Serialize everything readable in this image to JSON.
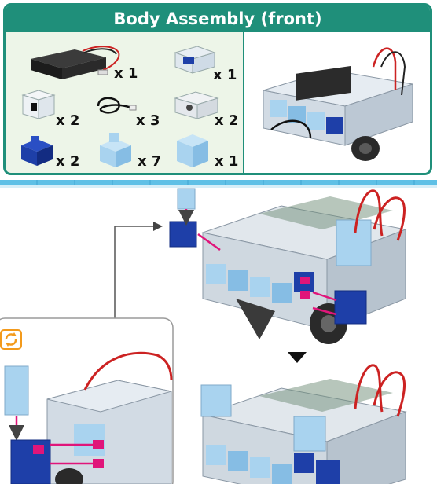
{
  "header": {
    "title": "Body Assembly (front)"
  },
  "parts": [
    {
      "name": "battery-box",
      "qty": "x 1"
    },
    {
      "name": "servo-motor",
      "qty": "x 1"
    },
    {
      "name": "light-sensor-block",
      "qty": "x 2"
    },
    {
      "name": "connecting-cable",
      "qty": "x 3"
    },
    {
      "name": "motor-block",
      "qty": "x 2"
    },
    {
      "name": "dark-blue-block",
      "qty": "x 2"
    },
    {
      "name": "light-blue-half-block",
      "qty": "x 7"
    },
    {
      "name": "light-blue-block",
      "qty": "x 1"
    }
  ],
  "colors": {
    "accent": "#1f8f7a",
    "panel_background": "#edf5e8",
    "connector_pink": "#e0157a",
    "block_dark_blue": "#1e3fa8",
    "block_light_blue": "#a9d3ef",
    "rotate_icon": "#f39a1c"
  }
}
